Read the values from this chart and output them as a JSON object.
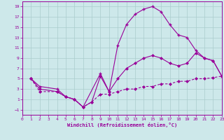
{
  "xlabel": "Windchill (Refroidissement éolien,°C)",
  "bg_color": "#cde8ea",
  "line_color": "#990099",
  "grid_color": "#aacccc",
  "xlim": [
    0,
    23
  ],
  "ylim": [
    -2,
    20
  ],
  "xticks": [
    0,
    1,
    2,
    3,
    4,
    5,
    6,
    7,
    8,
    9,
    10,
    11,
    12,
    13,
    14,
    15,
    16,
    17,
    18,
    19,
    20,
    21,
    22,
    23
  ],
  "yticks": [
    -1,
    1,
    3,
    5,
    7,
    9,
    11,
    13,
    15,
    17,
    19
  ],
  "line1_x": [
    1,
    2,
    4,
    5,
    6,
    7,
    9,
    10,
    11,
    12,
    13,
    14,
    15,
    16,
    17,
    18,
    19,
    20,
    21,
    22,
    23
  ],
  "line1_y": [
    5,
    3.5,
    3.0,
    1.5,
    1.0,
    -0.5,
    6.0,
    2.5,
    11.5,
    15.5,
    17.5,
    18.5,
    19.0,
    18.0,
    15.5,
    13.5,
    13.0,
    10.5,
    9.0,
    8.5,
    5.5
  ],
  "line2_x": [
    1,
    2,
    4,
    5,
    6,
    7,
    8,
    9,
    10,
    11,
    12,
    13,
    14,
    15,
    16,
    17,
    18,
    19,
    20,
    21,
    22,
    23
  ],
  "line2_y": [
    5,
    3.0,
    2.5,
    1.5,
    1.0,
    -0.5,
    0.5,
    5.5,
    2.5,
    5.0,
    7.0,
    8.0,
    9.0,
    9.5,
    9.0,
    8.0,
    7.5,
    8.0,
    10.0,
    9.0,
    8.5,
    5.5
  ],
  "line3_x": [
    1,
    2,
    4,
    5,
    6,
    7,
    8,
    9,
    10,
    11,
    12,
    13,
    14,
    15,
    16,
    17,
    18,
    19,
    20,
    21,
    22,
    23
  ],
  "line3_y": [
    5,
    2.5,
    2.5,
    1.5,
    1.0,
    -0.5,
    0.5,
    2.0,
    2.0,
    2.5,
    3.0,
    3.0,
    3.5,
    3.5,
    4.0,
    4.0,
    4.5,
    4.5,
    5.0,
    5.0,
    5.2,
    5.5
  ]
}
